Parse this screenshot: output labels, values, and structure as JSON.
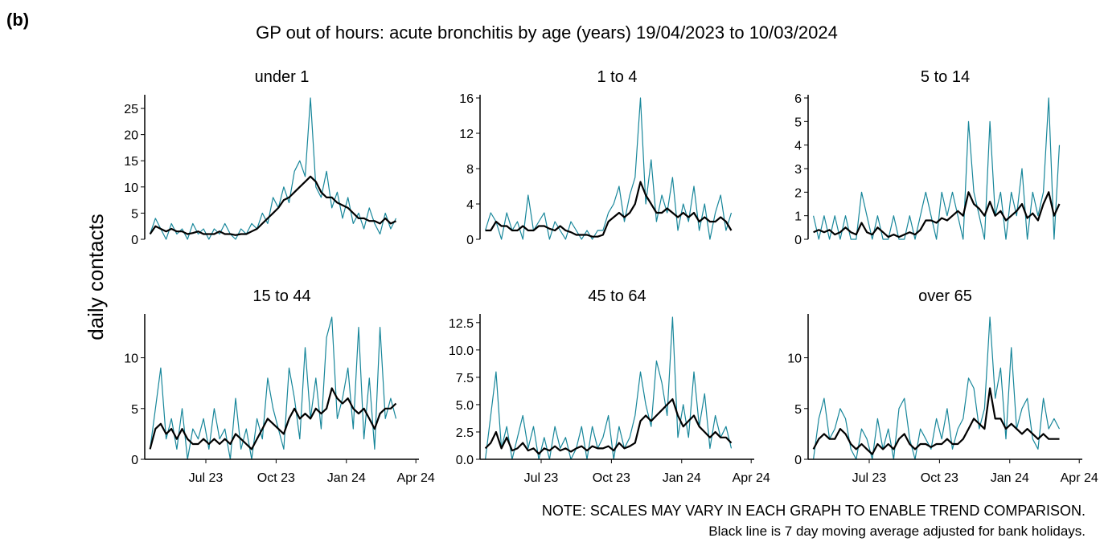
{
  "panel_label": "(b)",
  "chart_data": {
    "type": "line",
    "title": "GP out of hours: acute bronchitis by age (years) 19/04/2023 to 10/03/2024",
    "y_label": "daily contacts",
    "x": [
      "2023-04-19",
      "2023-04-26",
      "2023-05-03",
      "2023-05-10",
      "2023-05-17",
      "2023-05-24",
      "2023-05-31",
      "2023-06-07",
      "2023-06-14",
      "2023-06-21",
      "2023-06-28",
      "2023-07-05",
      "2023-07-12",
      "2023-07-19",
      "2023-07-26",
      "2023-08-02",
      "2023-08-09",
      "2023-08-16",
      "2023-08-23",
      "2023-08-30",
      "2023-09-06",
      "2023-09-13",
      "2023-09-20",
      "2023-09-27",
      "2023-10-04",
      "2023-10-11",
      "2023-10-18",
      "2023-10-25",
      "2023-11-01",
      "2023-11-08",
      "2023-11-15",
      "2023-11-22",
      "2023-11-29",
      "2023-12-06",
      "2023-12-13",
      "2023-12-20",
      "2023-12-27",
      "2024-01-03",
      "2024-01-10",
      "2024-01-17",
      "2024-01-24",
      "2024-01-31",
      "2024-02-07",
      "2024-02-14",
      "2024-02-21",
      "2024-02-28",
      "2024-03-06"
    ],
    "xlim": [
      "2023-04-12",
      "2024-04-05"
    ],
    "xticks": [
      {
        "value": "2023-07-01",
        "label": "Jul 23"
      },
      {
        "value": "2023-10-01",
        "label": "Oct 23"
      },
      {
        "value": "2024-01-01",
        "label": "Jan 24"
      },
      {
        "value": "2024-04-01",
        "label": "Apr 24"
      }
    ],
    "panels": [
      {
        "title": "under 1",
        "ylim": [
          0,
          27
        ],
        "yticks": [
          0,
          5,
          10,
          15,
          20,
          25
        ],
        "series": [
          {
            "color": "#17869a",
            "values": [
              1,
              4,
              2,
              0,
              3,
              1,
              2,
              0,
              3,
              1,
              2,
              0,
              2,
              1,
              3,
              1,
              0,
              2,
              1,
              3,
              2,
              5,
              3,
              8,
              6,
              10,
              7,
              13,
              15,
              12,
              27,
              10,
              8,
              13,
              6,
              9,
              4,
              8,
              3,
              5,
              2,
              6,
              3,
              1,
              5,
              2,
              4
            ]
          },
          {
            "color": "#000000",
            "values": [
              1,
              2.5,
              2,
              1.5,
              2,
              1.5,
              1.5,
              1,
              1.2,
              1.5,
              1,
              1,
              1,
              1.5,
              1,
              1,
              0.8,
              1,
              1,
              1.5,
              2,
              3,
              4,
              5,
              6,
              7.5,
              8,
              9,
              10,
              11,
              12,
              11,
              9,
              8,
              8,
              7,
              6.5,
              6,
              5,
              4,
              4,
              3.5,
              3.5,
              3,
              4,
              3,
              3.5
            ]
          }
        ]
      },
      {
        "title": "1 to 4",
        "ylim": [
          0,
          16
        ],
        "yticks": [
          0,
          4,
          8,
          12,
          16
        ],
        "series": [
          {
            "color": "#17869a",
            "values": [
              1,
              3,
              2,
              0,
              3,
              1,
              2,
              0,
              5,
              1,
              2,
              3,
              0,
              2,
              1,
              0,
              2,
              1,
              0,
              1,
              0,
              1,
              1,
              3,
              4,
              6,
              2,
              5,
              7,
              16,
              4,
              9,
              2,
              5,
              3,
              7,
              1,
              4,
              2,
              6,
              1,
              4,
              0,
              3,
              5,
              1,
              3
            ]
          },
          {
            "color": "#000000",
            "values": [
              1,
              1,
              2,
              1.5,
              1.5,
              1,
              1,
              1.5,
              1,
              1,
              1.5,
              1.5,
              1.2,
              1,
              1.5,
              1,
              0.8,
              0.5,
              0.5,
              0.5,
              0.3,
              0.3,
              0.5,
              2,
              2.5,
              3,
              2.5,
              3,
              4,
              6.5,
              5,
              4,
              3,
              3,
              3.5,
              3,
              2.5,
              3,
              2.5,
              3,
              2,
              2.5,
              2,
              2,
              2.5,
              2,
              1
            ]
          }
        ]
      },
      {
        "title": "5 to 14",
        "ylim": [
          0,
          6
        ],
        "yticks": [
          0,
          1,
          2,
          3,
          4,
          5,
          6
        ],
        "series": [
          {
            "color": "#17869a",
            "values": [
              1,
              0,
              1,
              0,
              1,
              0,
              1,
              0,
              0,
              2,
              1,
              0,
              1,
              0,
              0,
              1,
              0,
              0,
              1,
              0,
              1,
              2,
              1,
              0,
              2,
              1,
              2,
              1,
              0,
              5,
              2,
              1,
              0,
              5,
              1,
              2,
              0,
              2,
              1,
              3,
              0,
              2,
              1,
              2,
              6,
              0,
              4
            ]
          },
          {
            "color": "#000000",
            "values": [
              0.3,
              0.4,
              0.3,
              0.4,
              0.2,
              0.3,
              0.5,
              0.3,
              0.2,
              0.7,
              0.3,
              0.2,
              0.5,
              0.3,
              0.1,
              0.2,
              0.1,
              0.2,
              0.3,
              0.2,
              0.4,
              0.8,
              0.8,
              0.7,
              0.9,
              0.8,
              1,
              1.2,
              1,
              2,
              1.5,
              1.3,
              1,
              1.6,
              1,
              1.2,
              0.8,
              1,
              1.2,
              1.5,
              0.9,
              1.1,
              0.8,
              1.5,
              2,
              1,
              1.5
            ]
          }
        ]
      },
      {
        "title": "15 to 44",
        "ylim": [
          0,
          14
        ],
        "yticks": [
          0,
          5,
          10
        ],
        "series": [
          {
            "color": "#17869a",
            "values": [
              1,
              5,
              9,
              2,
              4,
              1,
              5,
              0,
              3,
              2,
              4,
              1,
              5,
              2,
              3,
              0,
              6,
              1,
              3,
              0,
              4,
              2,
              8,
              5,
              3,
              1,
              9,
              6,
              2,
              11,
              4,
              8,
              3,
              12,
              14,
              4,
              6,
              9,
              3,
              13,
              2,
              8,
              1,
              13,
              4,
              6,
              4
            ]
          },
          {
            "color": "#000000",
            "values": [
              1,
              3,
              3.5,
              2.5,
              3,
              2,
              3,
              2,
              1.5,
              1.5,
              2,
              1.5,
              2,
              1.5,
              2,
              1.5,
              2.5,
              2,
              1.5,
              1,
              2,
              3,
              4,
              3.5,
              3,
              2.5,
              4,
              5,
              4,
              4.5,
              4,
              5,
              4.5,
              5,
              7,
              6,
              5.5,
              6,
              5,
              4.5,
              5,
              4,
              3,
              4.5,
              5,
              5,
              5.5
            ]
          }
        ]
      },
      {
        "title": "45 to 64",
        "ylim": [
          0,
          13
        ],
        "yticks": [
          {
            "value": 0,
            "label": "0.0"
          },
          2.5,
          {
            "value": 5,
            "label": "5.0"
          },
          7.5,
          {
            "value": 10,
            "label": "10.0"
          },
          12.5
        ],
        "series": [
          {
            "color": "#17869a",
            "values": [
              0,
              4,
              8,
              1,
              3,
              0,
              2,
              4,
              1,
              3,
              0,
              2,
              0,
              3,
              1,
              2,
              0,
              1,
              3,
              0,
              3,
              1,
              2,
              4,
              0,
              3,
              1,
              2,
              4,
              8,
              5,
              3,
              9,
              7,
              4,
              13,
              2,
              5,
              2,
              8,
              3,
              6,
              1,
              4,
              2,
              3,
              1
            ]
          },
          {
            "color": "#000000",
            "values": [
              1,
              1.5,
              2.5,
              1,
              2,
              0.8,
              1,
              1.5,
              0.8,
              1,
              0.5,
              1,
              0.8,
              1.2,
              0.8,
              1,
              0.7,
              1,
              1.2,
              0.8,
              1.2,
              1,
              1,
              1.2,
              0.8,
              1.5,
              1,
              1.2,
              1.5,
              3.5,
              4,
              3.5,
              4,
              4.5,
              5,
              5.5,
              4,
              3,
              3.5,
              4,
              3,
              2.5,
              2,
              2.5,
              2,
              2,
              1.5
            ]
          }
        ]
      },
      {
        "title": "over 65",
        "ylim": [
          0,
          14
        ],
        "yticks": [
          0,
          5,
          10
        ],
        "series": [
          {
            "color": "#17869a",
            "values": [
              0,
              4,
              6,
              2,
              3,
              5,
              4,
              1,
              0,
              3,
              2,
              0,
              4,
              1,
              3,
              0,
              5,
              6,
              2,
              0,
              3,
              2,
              1,
              4,
              2,
              5,
              1,
              3,
              4,
              8,
              7,
              3,
              5,
              14,
              6,
              9,
              2,
              11,
              3,
              5,
              6,
              2,
              1,
              6,
              3,
              4,
              3
            ]
          },
          {
            "color": "#000000",
            "values": [
              1,
              2,
              2.5,
              2,
              2,
              3,
              2.5,
              1.5,
              1,
              1.5,
              1,
              0.5,
              1.5,
              1,
              1.5,
              1,
              2,
              2.5,
              1.5,
              1,
              1.5,
              1.5,
              1.2,
              1.5,
              1.5,
              2,
              1.5,
              1.5,
              2,
              3,
              4,
              3.5,
              3,
              7,
              4,
              4,
              3,
              3.5,
              3,
              2.5,
              3,
              2.5,
              2,
              2.5,
              2,
              2,
              2
            ]
          }
        ]
      }
    ],
    "notes": [
      "NOTE: SCALES MAY VARY IN EACH GRAPH TO ENABLE TREND COMPARISON.",
      "Black line is 7 day moving average adjusted for bank holidays."
    ]
  }
}
